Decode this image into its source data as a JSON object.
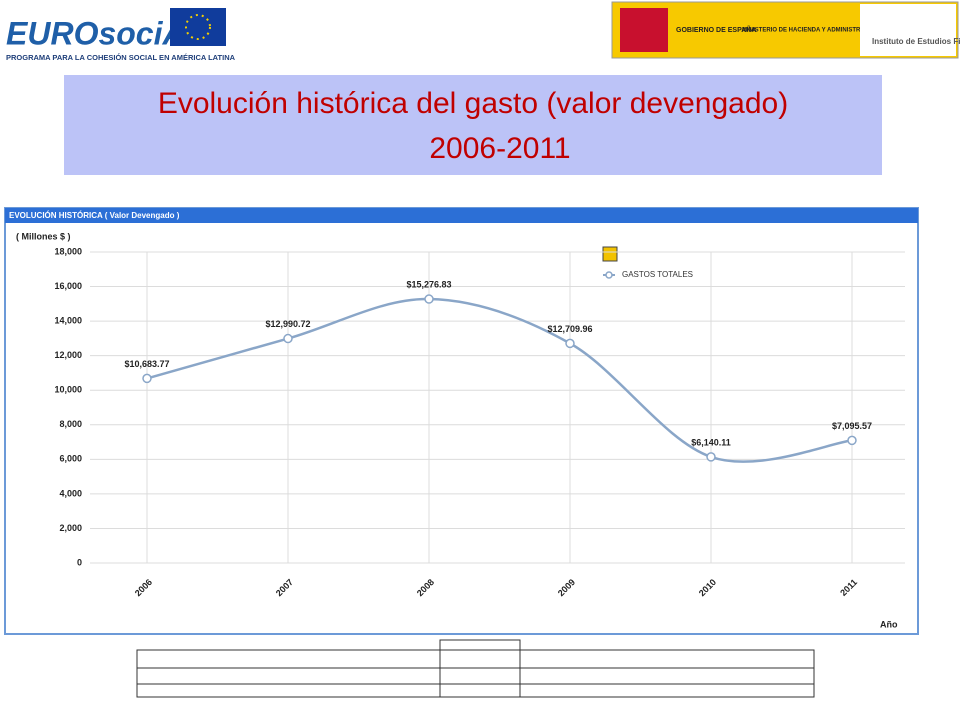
{
  "header": {
    "logo_left": "EUROsociAL",
    "logo_left_subtitle": "PROGRAMA PARA LA COHESIÓN SOCIAL EN AMÉRICA LATINA",
    "government": "GOBIERNO DE ESPAÑA",
    "ministry": "MINISTERIO DE HACIENDA Y ADMINISTRACIONES PÚBLICAS",
    "institute": "Instituto de Estudios Fiscales"
  },
  "slide": {
    "title": [
      "Evolución histórica del gasto (valor devengado)",
      "2006-2011"
    ]
  },
  "chart_data": {
    "type": "line",
    "title": "EVOLUCIÓN HISTÓRICA ( Valor Devengado )",
    "y_label": "( Millones $ )",
    "x_label": "Año",
    "categories": [
      "2006",
      "2007",
      "2008",
      "2009",
      "2010",
      "2011"
    ],
    "series": [
      {
        "name": "GASTOS TOTALES",
        "color": "#8aa6c8",
        "values": [
          10683.77,
          12990.72,
          15276.83,
          12709.96,
          6140.11,
          7095.57
        ],
        "value_labels": [
          "$10,683.77",
          "$12,990.72",
          "$15,276.83",
          "$12,709.96",
          "$6,140.11",
          "$7,095.57"
        ]
      }
    ],
    "ylim": [
      0,
      18000
    ],
    "yticks": [
      0,
      {
        "value": 2000,
        "label": "2,000"
      },
      {
        "value": 4000,
        "label": "4,000"
      },
      {
        "value": 6000,
        "label": "6,000"
      },
      {
        "value": 8000,
        "label": "8,000"
      },
      {
        "value": 10000,
        "label": "10,000"
      },
      {
        "value": 12000,
        "label": "12,000"
      },
      {
        "value": 14000,
        "label": "14,000"
      },
      {
        "value": 16000,
        "label": "16,000"
      },
      {
        "value": 18000,
        "label": "18,000"
      }
    ],
    "grid": true,
    "smooth": true
  }
}
